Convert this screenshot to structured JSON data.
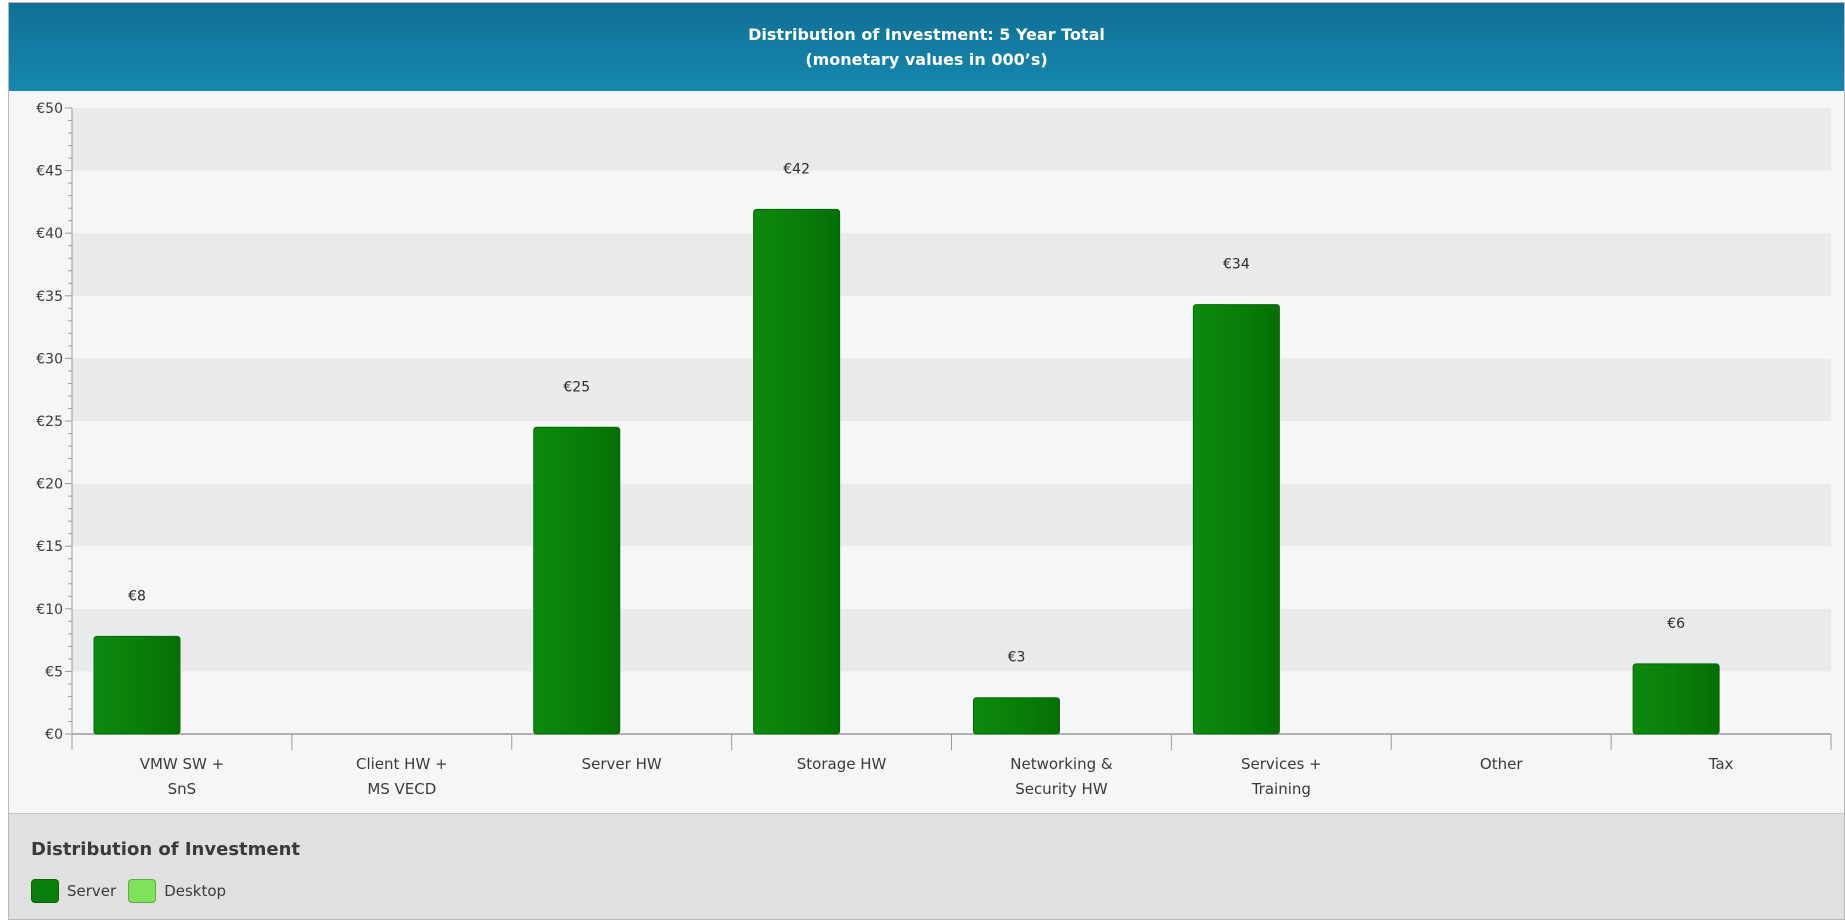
{
  "header": {
    "title_line1": "Distribution of Investment: 5 Year Total",
    "title_line2": "(monetary values in 000’s)"
  },
  "legend": {
    "title": "Distribution of Investment",
    "items": [
      {
        "label": "Server",
        "color": "#0b7f0b"
      },
      {
        "label": "Desktop",
        "color": "#7ee35a"
      }
    ]
  },
  "chart_data": {
    "type": "bar",
    "title": "Distribution of Investment: 5 Year Total",
    "subtitle": "(monetary values in 000’s)",
    "categories": [
      [
        "VMW SW +",
        "SnS"
      ],
      [
        "Client HW +",
        "MS VECD"
      ],
      [
        "Server HW"
      ],
      [
        "Storage HW"
      ],
      [
        "Networking &",
        "Security HW"
      ],
      [
        "Services +",
        "Training"
      ],
      [
        "Other"
      ],
      [
        "Tax"
      ]
    ],
    "series": [
      {
        "name": "Server",
        "color": "#0b7f0b",
        "values": [
          7.8,
          0,
          24.5,
          41.9,
          2.9,
          34.3,
          0,
          5.6
        ]
      },
      {
        "name": "Desktop",
        "color": "#7ee35a",
        "values": [
          0,
          0,
          0,
          0,
          0,
          0,
          0,
          0
        ]
      }
    ],
    "data_labels": [
      "€8",
      null,
      "€25",
      "€42",
      "€3",
      "€34",
      null,
      "€6"
    ],
    "ylim": [
      0,
      50
    ],
    "y_ticks": [
      0,
      5,
      10,
      15,
      20,
      25,
      30,
      35,
      40,
      45,
      50
    ],
    "y_tick_labels": [
      "€0",
      "€5",
      "€10",
      "€15",
      "€20",
      "€25",
      "€30",
      "€35",
      "€40",
      "€45",
      "€50"
    ],
    "xlabel": "",
    "ylabel": "",
    "grid": true,
    "legend_position": "bottom-left"
  }
}
